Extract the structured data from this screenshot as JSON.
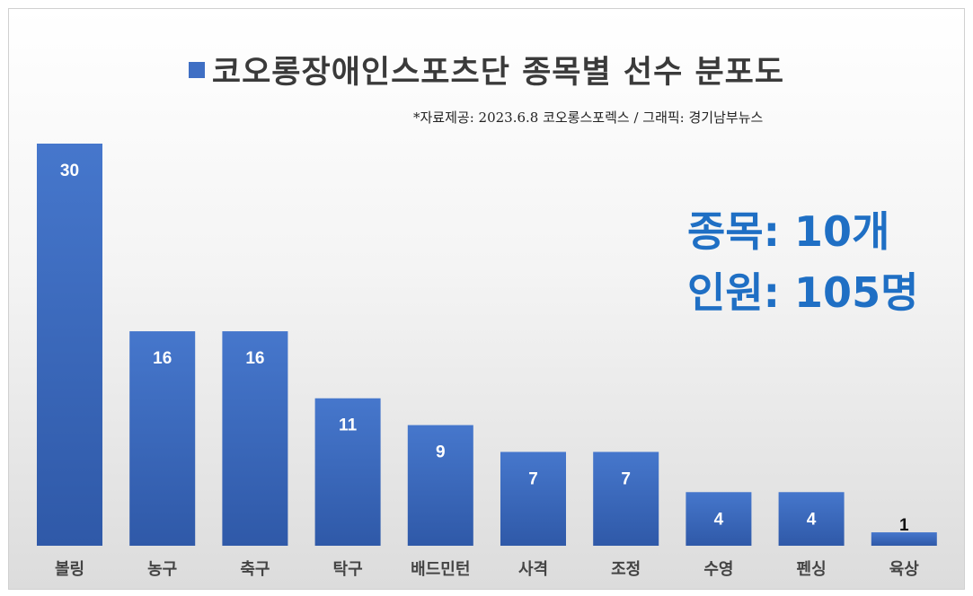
{
  "chart_data": {
    "type": "bar",
    "title": "코오롱장애인스포츠단 종목별 선수 분포도",
    "subtitle": "*자료제공: 2023.6.8 코오롱스포렉스 / 그래픽: 경기남부뉴스",
    "categories": [
      "볼링",
      "농구",
      "축구",
      "탁구",
      "배드민턴",
      "사격",
      "조정",
      "수영",
      "펜싱",
      "육상"
    ],
    "values": [
      30,
      16,
      16,
      11,
      9,
      7,
      7,
      4,
      4,
      1
    ],
    "xlabel": "",
    "ylabel": "",
    "ylim": [
      0,
      30
    ],
    "grid": false,
    "bar_color": "#3f6fc4",
    "annotations": [
      "종목: 10개",
      "인원: 105명"
    ]
  }
}
